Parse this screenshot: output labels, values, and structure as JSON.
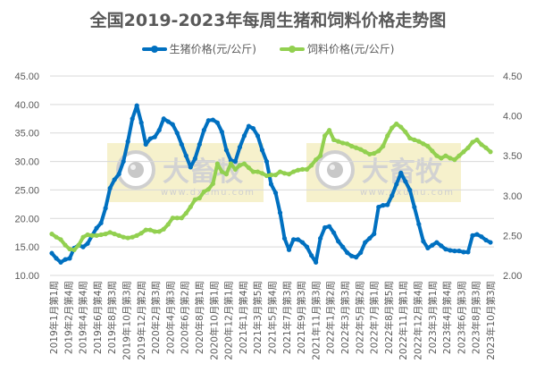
{
  "chart_data": {
    "type": "line",
    "title": "全国2019-2023年每周生猪和饲料价格走势图",
    "xlabel": "",
    "ylabel_left": "生猪价格(元/公斤)",
    "ylabel_right": "饲料价格(元/公斤)",
    "ylim_left": [
      10,
      45
    ],
    "ylim_right": [
      2.0,
      4.5
    ],
    "yticks_left": [
      "10.00",
      "15.00",
      "20.00",
      "25.00",
      "30.00",
      "35.00",
      "40.00",
      "45.00"
    ],
    "yticks_right": [
      "2.00",
      "2.50",
      "3.00",
      "3.50",
      "4.00",
      "4.50"
    ],
    "grid": true,
    "legend_position": "top",
    "categories": [
      "2019年1月第1周",
      "2019年2月第4周",
      "2019年4月第4周",
      "2019年6月第4周",
      "2019年8月第3周",
      "2019年10月第3周",
      "2019年12月第2周",
      "2020年2月第3周",
      "2020年4月第3周",
      "2020年6月第2周",
      "2020年8月第1周",
      "2020年10月第1周",
      "2020年12月第1周",
      "2021年1月第4周",
      "2021年3月第5周",
      "2021年5月第4周",
      "2021年7月第3周",
      "2021年9月第3周",
      "2021年11月第3周",
      "2022年1月第2周",
      "2022年3月第3周",
      "2022年5月第2周",
      "2022年7月第1周",
      "2022年8月第5周",
      "2022年11月第1周",
      "2022年12月第4周",
      "2023年3月第1周",
      "2023年4月第4周",
      "2023年6月第3周",
      "2023年8月第3周",
      "2023年10月第3周"
    ],
    "series": [
      {
        "name": "生猪价格(元/公斤)",
        "axis": "left",
        "color": "#0070C0",
        "values": [
          13.9,
          13.0,
          12.3,
          12.8,
          13.0,
          14.8,
          15.3,
          15.0,
          15.6,
          17.0,
          18.3,
          19.2,
          21.8,
          25.3,
          26.8,
          27.8,
          30.0,
          33.5,
          37.5,
          39.8,
          36.8,
          33.0,
          34.0,
          34.3,
          35.5,
          37.5,
          37.0,
          36.5,
          35.0,
          33.0,
          31.0,
          29.0,
          30.5,
          33.0,
          35.5,
          37.2,
          37.3,
          36.8,
          35.2,
          32.0,
          30.2,
          30.0,
          32.5,
          34.5,
          36.2,
          35.8,
          34.5,
          32.0,
          30.0,
          26.0,
          24.5,
          21.0,
          16.5,
          14.5,
          16.3,
          16.3,
          15.8,
          15.0,
          13.5,
          12.3,
          16.5,
          18.4,
          18.6,
          17.5,
          16.0,
          15.0,
          14.0,
          13.4,
          13.2,
          14.0,
          15.8,
          16.5,
          17.3,
          22.0,
          22.3,
          22.4,
          24.0,
          26.0,
          28.0,
          26.5,
          25.0,
          22.0,
          19.0,
          16.0,
          14.8,
          15.3,
          15.8,
          15.2,
          14.6,
          14.4,
          14.3,
          14.3,
          14.1,
          14.1,
          17.0,
          17.2,
          16.8,
          16.2,
          15.8
        ]
      },
      {
        "name": "饲料价格(元/公斤)",
        "axis": "right",
        "color": "#92D050",
        "values": [
          2.52,
          2.48,
          2.45,
          2.38,
          2.33,
          2.32,
          2.38,
          2.48,
          2.51,
          2.5,
          2.5,
          2.51,
          2.52,
          2.54,
          2.52,
          2.5,
          2.48,
          2.47,
          2.48,
          2.5,
          2.53,
          2.57,
          2.57,
          2.55,
          2.55,
          2.58,
          2.64,
          2.72,
          2.72,
          2.72,
          2.78,
          2.86,
          2.95,
          2.97,
          3.05,
          3.08,
          3.15,
          3.4,
          3.3,
          3.27,
          3.4,
          3.33,
          3.38,
          3.4,
          3.35,
          3.3,
          3.3,
          3.28,
          3.25,
          3.26,
          3.26,
          3.3,
          3.28,
          3.27,
          3.3,
          3.32,
          3.33,
          3.33,
          3.38,
          3.45,
          3.5,
          3.75,
          3.82,
          3.7,
          3.68,
          3.66,
          3.65,
          3.62,
          3.6,
          3.58,
          3.55,
          3.52,
          3.53,
          3.56,
          3.62,
          3.75,
          3.85,
          3.9,
          3.86,
          3.8,
          3.72,
          3.7,
          3.68,
          3.65,
          3.62,
          3.56,
          3.5,
          3.47,
          3.5,
          3.47,
          3.45,
          3.5,
          3.55,
          3.6,
          3.67,
          3.7,
          3.64,
          3.6,
          3.55
        ]
      }
    ]
  },
  "header": {
    "title": "全国2019-2023年每周生猪和饲料价格走势图"
  },
  "legend": [
    {
      "label": "生猪价格(元/公斤)",
      "color": "#0070C0"
    },
    {
      "label": "饲料价格(元/公斤)",
      "color": "#92D050"
    }
  ],
  "watermark": {
    "brand": "大畜牧",
    "url": "www.dxumu.com"
  }
}
